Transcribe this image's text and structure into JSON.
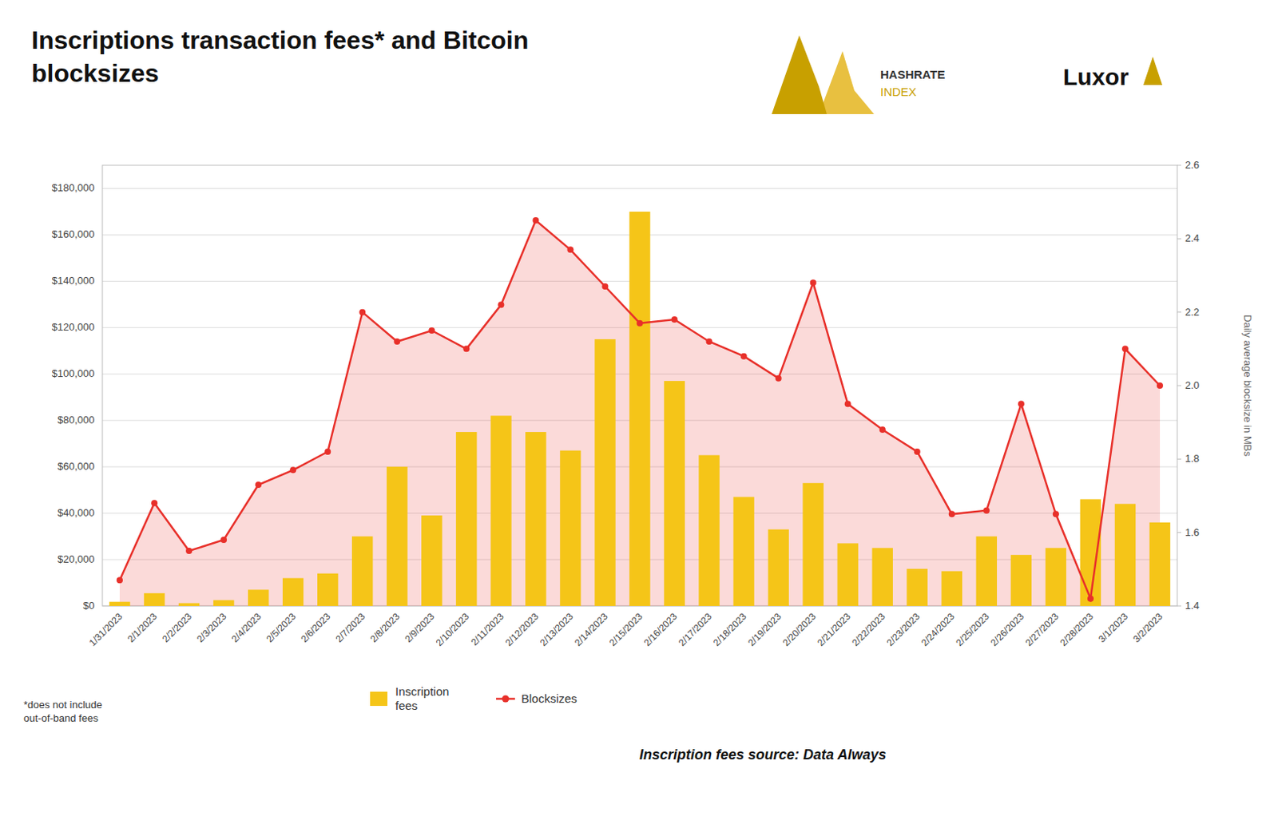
{
  "chart_data": {
    "type": "bar",
    "title": "Inscriptions transaction fees* and Bitcoin\nblocksizes",
    "categories": [
      "1/31/2023",
      "2/1/2023",
      "2/2/2023",
      "2/3/2023",
      "2/4/2023",
      "2/5/2023",
      "2/6/2023",
      "2/7/2023",
      "2/8/2023",
      "2/9/2023",
      "2/10/2023",
      "2/11/2023",
      "2/12/2023",
      "2/13/2023",
      "2/14/2023",
      "2/15/2023",
      "2/16/2023",
      "2/17/2023",
      "2/18/2023",
      "2/19/2023",
      "2/20/2023",
      "2/21/2023",
      "2/22/2023",
      "2/23/2023",
      "2/24/2023",
      "2/25/2023",
      "2/26/2023",
      "2/27/2023",
      "2/28/2023",
      "3/1/2023",
      "3/2/2023"
    ],
    "series": [
      {
        "name": "Inscription\nfees",
        "type": "bar",
        "color": "#F5C518",
        "values": [
          1800,
          5500,
          1200,
          2500,
          7000,
          12000,
          14000,
          30000,
          60000,
          39000,
          75000,
          82000,
          75000,
          67000,
          115000,
          170000,
          97000,
          65000,
          47000,
          33000,
          53000,
          27000,
          25000,
          16000,
          15000,
          30000,
          22000,
          25000,
          46000,
          44000,
          36000
        ]
      },
      {
        "name": "Blocksizes",
        "type": "line",
        "axis": "y2",
        "color": "#E8302A",
        "marker": "circle",
        "values": [
          1.47,
          1.68,
          1.55,
          1.58,
          1.73,
          1.77,
          1.82,
          2.2,
          2.12,
          2.15,
          2.1,
          2.22,
          2.45,
          2.37,
          2.27,
          2.17,
          2.18,
          2.12,
          2.08,
          2.02,
          2.28,
          1.95,
          1.88,
          1.82,
          1.65,
          1.66,
          1.95,
          1.65,
          1.42,
          2.1,
          2.0
        ]
      }
    ],
    "ylim": [
      0,
      190000
    ],
    "yticks": [
      {
        "value": 0,
        "label": "$0"
      },
      {
        "value": 20000,
        "label": "$20,000"
      },
      {
        "value": 40000,
        "label": "$40,000"
      },
      {
        "value": 60000,
        "label": "$60,000"
      },
      {
        "value": 80000,
        "label": "$80,000"
      },
      {
        "value": 100000,
        "label": "$100,000"
      },
      {
        "value": 120000,
        "label": "$120,000"
      },
      {
        "value": 140000,
        "label": "$140,000"
      },
      {
        "value": 160000,
        "label": "$160,000"
      },
      {
        "value": 180000,
        "label": "$180,000"
      }
    ],
    "y2label": "Daily average blocksize in MBs",
    "y2lim": [
      1.4,
      2.6
    ],
    "y2ticks": [
      1.4,
      1.6,
      1.8,
      {
        "value": 2.0,
        "label": "2.0"
      },
      2.2,
      2.4,
      2.6
    ],
    "grid": true,
    "legend": "bottom",
    "annotations": [
      "*does not include\nout-of-band fees",
      "Inscription fees source: Data Always",
      "HASHRATE",
      "INDEX",
      "Luxor"
    ]
  }
}
